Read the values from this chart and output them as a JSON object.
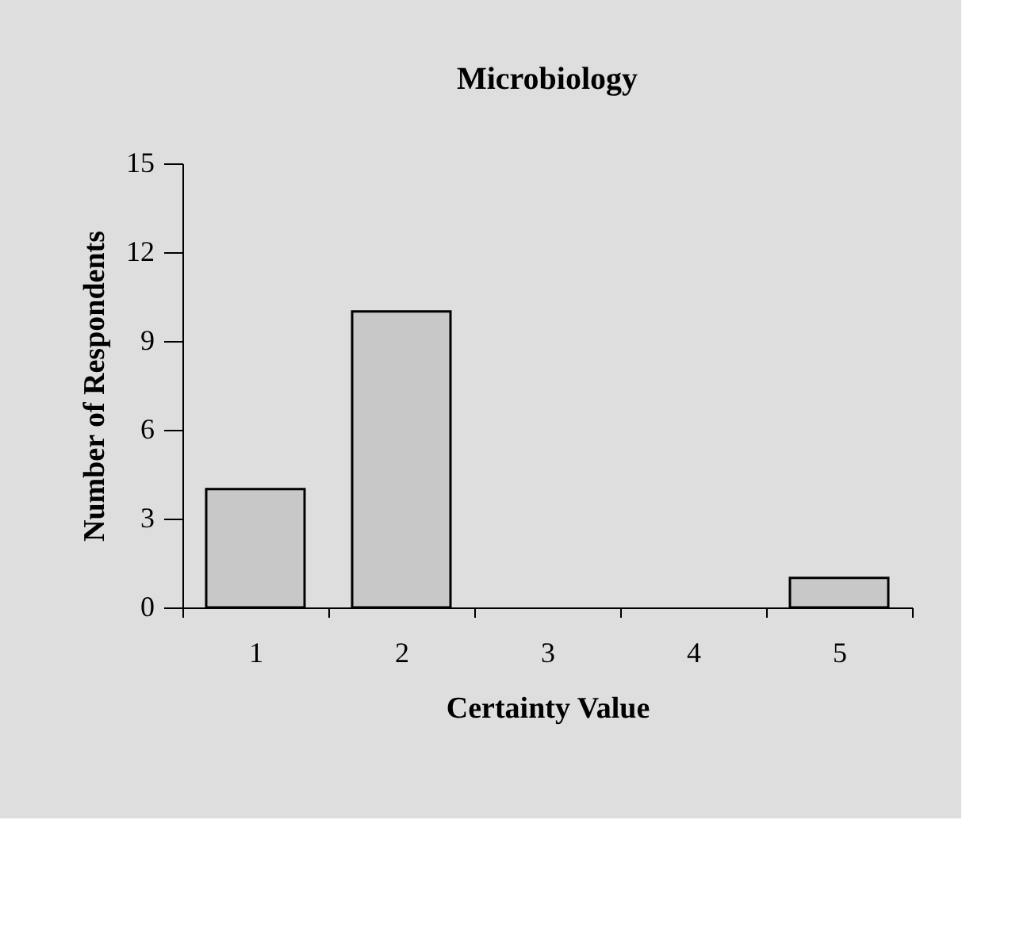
{
  "chart_data": {
    "type": "bar",
    "title": "Microbiology",
    "xlabel": "Certainty Value",
    "ylabel": "Number of Respondents",
    "categories": [
      "1",
      "2",
      "3",
      "4",
      "5"
    ],
    "values": [
      4,
      10,
      0,
      0,
      1
    ],
    "color": "#c8c8c8",
    "ylim": [
      0,
      15
    ],
    "yticks": [
      0,
      3,
      6,
      9,
      12,
      15
    ]
  }
}
